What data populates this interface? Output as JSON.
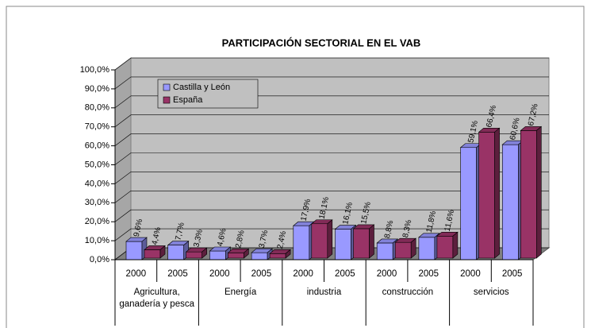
{
  "chart_data": {
    "type": "bar3d",
    "title": "PARTICIPACIÓN SECTORIAL EN EL VAB",
    "categories": [
      "2000",
      "2005",
      "2000",
      "2005",
      "2000",
      "2005",
      "2000",
      "2005",
      "2000",
      "2005"
    ],
    "groups": [
      "Agricultura, ganadería y pesca",
      "Energía",
      "industria",
      "construcción",
      "servicios"
    ],
    "series": [
      {
        "name": "Castilla y León",
        "color": "#9999ff",
        "values": [
          9.6,
          7.7,
          4.6,
          3.7,
          17.9,
          16.1,
          8.8,
          11.8,
          59.1,
          60.6
        ],
        "value_labels": [
          "9,6%",
          "7,7%",
          "4,6%",
          "3,7%",
          "17,9%",
          "16,1%",
          "8,8%",
          "11,8%",
          "59,1%",
          "60,6%"
        ]
      },
      {
        "name": "España",
        "color": "#993366",
        "values": [
          4.4,
          3.3,
          2.8,
          2.4,
          18.1,
          15.5,
          8.3,
          11.6,
          66.4,
          67.2
        ],
        "value_labels": [
          "4,4%",
          "3,3%",
          "2,8%",
          "2,4%",
          "18,1%",
          "15,5%",
          "8,3%",
          "11,6%",
          "66,4%",
          "67,2%"
        ]
      }
    ],
    "ylim": [
      0,
      100
    ],
    "yticks": [
      {
        "value": 0,
        "label": "0,0%"
      },
      {
        "value": 10,
        "label": "10,0%"
      },
      {
        "value": 20,
        "label": "20,0%"
      },
      {
        "value": 30,
        "label": "30,0%"
      },
      {
        "value": 40,
        "label": "40,0%"
      },
      {
        "value": 50,
        "label": "50,0%"
      },
      {
        "value": 60,
        "label": "60,0%"
      },
      {
        "value": 70,
        "label": "70,0%"
      },
      {
        "value": 80,
        "label": "80,0%"
      },
      {
        "value": 90,
        "label": "90,0%"
      },
      {
        "value": 100,
        "label": "100,0%"
      }
    ],
    "grid": true
  }
}
